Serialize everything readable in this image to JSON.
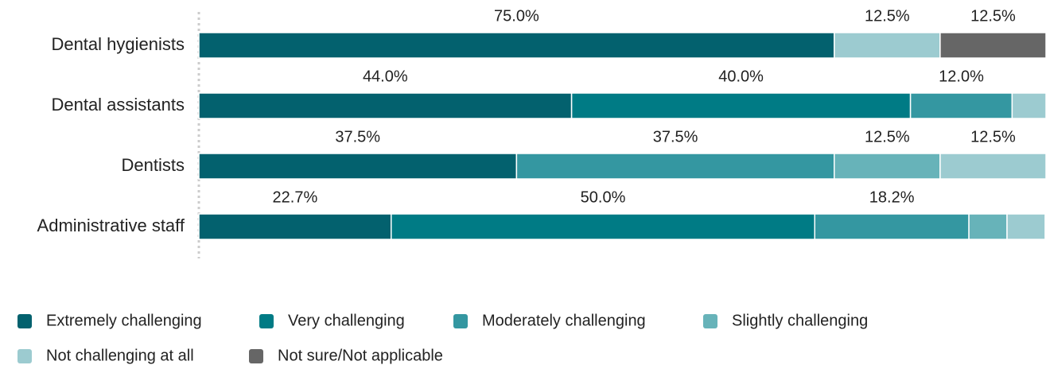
{
  "chart_data": {
    "type": "stacked-bar",
    "orientation": "horizontal",
    "categories": [
      "Dental hygienists",
      "Dental assistants",
      "Dentists",
      "Administrative staff"
    ],
    "xlim": [
      0,
      100
    ],
    "series": [
      {
        "name": "Extremely challenging",
        "color": "#03616e",
        "values": [
          75.0,
          44.0,
          37.5,
          22.7
        ],
        "value_labels": [
          "75.0%",
          "44.0%",
          "37.5%",
          "22.7%"
        ]
      },
      {
        "name": "Very challenging",
        "color": "#007b85",
        "values": [
          0,
          40.0,
          0,
          50.0
        ],
        "value_labels": [
          null,
          "40.0%",
          null,
          "50.0%"
        ]
      },
      {
        "name": "Moderately challenging",
        "color": "#3497a1",
        "values": [
          0,
          12.0,
          37.5,
          18.2
        ],
        "value_labels": [
          null,
          "12.0%",
          "37.5%",
          "18.2%"
        ]
      },
      {
        "name": "Slightly challenging",
        "color": "#67b3b9",
        "values": [
          0,
          0,
          12.5,
          4.5
        ],
        "value_labels": [
          null,
          null,
          "12.5%",
          null
        ]
      },
      {
        "name": "Not challenging at all",
        "color": "#9ccbd0",
        "values": [
          12.5,
          4.0,
          12.5,
          4.5
        ],
        "value_labels": [
          "12.5%",
          null,
          "12.5%",
          null
        ]
      },
      {
        "name": "Not sure/Not applicable",
        "color": "#666666",
        "values": [
          12.5,
          0,
          0,
          0
        ],
        "value_labels": [
          "12.5%",
          null,
          null,
          null
        ]
      }
    ]
  }
}
